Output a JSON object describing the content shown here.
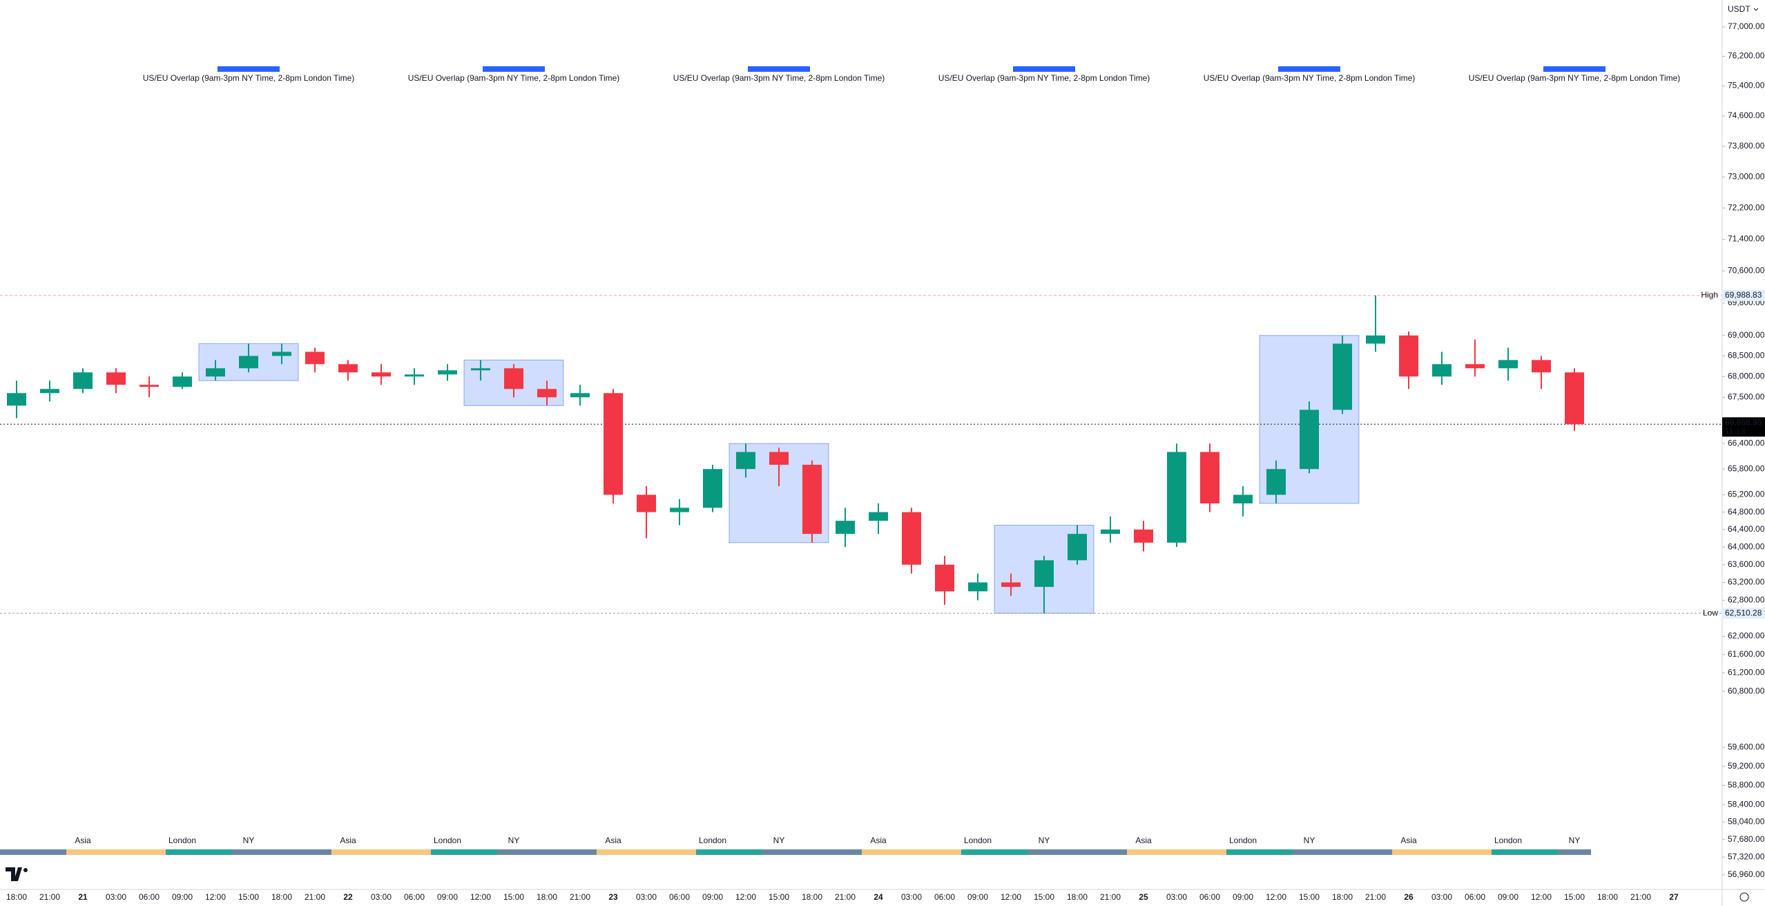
{
  "chart_data": {
    "type": "candlestick",
    "currency": "USDT",
    "log_scale": true,
    "up_color": "#089981",
    "down_color": "#f23645",
    "box_color": "#2962ff",
    "categories": [
      "18:00",
      "21:00",
      "21",
      "03:00",
      "06:00",
      "09:00",
      "12:00",
      "15:00",
      "18:00",
      "21:00",
      "22",
      "03:00",
      "06:00",
      "09:00",
      "12:00",
      "15:00",
      "18:00",
      "21:00",
      "23",
      "03:00",
      "06:00",
      "09:00",
      "12:00",
      "15:00",
      "18:00",
      "21:00",
      "24",
      "03:00",
      "06:00",
      "09:00",
      "12:00",
      "15:00",
      "18:00",
      "21:00",
      "25",
      "03:00",
      "06:00",
      "09:00",
      "12:00",
      "15:00",
      "18:00",
      "21:00",
      "26",
      "03:00",
      "06:00",
      "09:00",
      "12:00",
      "15:00",
      "18:00",
      "21:00",
      "27"
    ],
    "open": [
      67300,
      67600,
      67700,
      68100,
      67800,
      67750,
      68000,
      68200,
      68500,
      68600,
      68300,
      68100,
      68000,
      68050,
      68150,
      68200,
      67700,
      67500,
      67600,
      65200,
      64800,
      64900,
      65800,
      66200,
      65900,
      64300,
      64600,
      64800,
      63600,
      63000,
      63200,
      63100,
      63700,
      64300,
      64400,
      64100,
      66200,
      65000,
      65200,
      65800,
      67200,
      68800,
      69000,
      68000,
      68300,
      68200,
      68400,
      68100,
      null,
      null,
      null
    ],
    "high": [
      67900,
      67900,
      68200,
      68200,
      68000,
      68100,
      68400,
      68800,
      68800,
      68700,
      68400,
      68300,
      68200,
      68300,
      68400,
      68300,
      67900,
      67800,
      67700,
      65400,
      65100,
      65900,
      66400,
      66300,
      66000,
      64900,
      65000,
      64900,
      63800,
      63400,
      63400,
      63800,
      64500,
      64700,
      64600,
      66400,
      66400,
      65400,
      66000,
      67400,
      69000,
      69988.83,
      69100,
      68600,
      68900,
      68700,
      68500,
      68200,
      null,
      null,
      null
    ],
    "low": [
      67000,
      67400,
      67600,
      67600,
      67500,
      67700,
      67900,
      68100,
      68300,
      68100,
      67900,
      67800,
      67800,
      67900,
      67900,
      67500,
      67300,
      67300,
      65000,
      64200,
      64500,
      64800,
      65600,
      65400,
      64100,
      64000,
      64300,
      63400,
      62700,
      62800,
      62900,
      62510.28,
      63600,
      64100,
      63900,
      64000,
      64800,
      64700,
      65000,
      65700,
      67100,
      68600,
      67700,
      67800,
      68000,
      67900,
      67700,
      66700,
      null,
      null,
      null
    ],
    "close": [
      67600,
      67700,
      68100,
      67800,
      67750,
      68000,
      68200,
      68500,
      68600,
      68300,
      68100,
      68000,
      68050,
      68150,
      68200,
      67700,
      67500,
      67600,
      65200,
      64800,
      64900,
      65800,
      66200,
      65900,
      64300,
      64600,
      64800,
      63600,
      63000,
      63200,
      63100,
      63700,
      64300,
      64400,
      64100,
      66200,
      65000,
      65200,
      65800,
      67200,
      68800,
      69000,
      68000,
      68300,
      68200,
      68400,
      68100,
      66856.95,
      null,
      null,
      null
    ],
    "ylim": [
      56665,
      77740
    ],
    "yticks": [
      {
        "value": 77000,
        "label": "77,000.00"
      },
      {
        "value": 76200,
        "label": "76,200.00"
      },
      {
        "value": 75400,
        "label": "75,400.00"
      },
      {
        "value": 74600,
        "label": "74,600.00"
      },
      {
        "value": 73800,
        "label": "73,800.00"
      },
      {
        "value": 73000,
        "label": "73,000.00"
      },
      {
        "value": 72200,
        "label": "72,200.00"
      },
      {
        "value": 71400,
        "label": "71,400.00"
      },
      {
        "value": 70600,
        "label": "70,600.00"
      },
      {
        "value": 69800,
        "label": "69,800.00"
      },
      {
        "value": 69000,
        "label": "69,000.00"
      },
      {
        "value": 68500,
        "label": "68,500.00"
      },
      {
        "value": 68000,
        "label": "68,000.00"
      },
      {
        "value": 67500,
        "label": "67,500.00"
      },
      {
        "value": 66400,
        "label": "66,400.00"
      },
      {
        "value": 65800,
        "label": "65,800.00"
      },
      {
        "value": 65200,
        "label": "65,200.00"
      },
      {
        "value": 64800,
        "label": "64,800.00"
      },
      {
        "value": 64400,
        "label": "64,400.00"
      },
      {
        "value": 64000,
        "label": "64,000.00"
      },
      {
        "value": 63600,
        "label": "63,600.00"
      },
      {
        "value": 63200,
        "label": "63,200.00"
      },
      {
        "value": 62800,
        "label": "62,800.00"
      },
      {
        "value": 62000,
        "label": "62,000.00"
      },
      {
        "value": 61600,
        "label": "61,600.00"
      },
      {
        "value": 61200,
        "label": "61,200.00"
      },
      {
        "value": 60800,
        "label": "60,800.00"
      },
      {
        "value": 59600,
        "label": "59,600.00"
      },
      {
        "value": 59200,
        "label": "59,200.00"
      },
      {
        "value": 58800,
        "label": "58,800.00"
      },
      {
        "value": 58400,
        "label": "58,400.00"
      },
      {
        "value": 58040,
        "label": "58,040.00"
      },
      {
        "value": 57680,
        "label": "57,680.00"
      },
      {
        "value": 57320,
        "label": "57,320.00"
      },
      {
        "value": 56960,
        "label": "56,960.00"
      }
    ],
    "high_line": {
      "label": "High",
      "value": 69988.83,
      "value_label": "69,988.83"
    },
    "low_line": {
      "label": "Low",
      "value": 62510.28,
      "value_label": "62,510.28"
    },
    "last_price": {
      "value": 66856.95,
      "value_label": "66,856.95",
      "countdown": "11:13"
    },
    "overlap_labels": [
      "US/EU Overlap (9am-3pm NY Time, 2-8pm London Time)",
      "US/EU Overlap (9am-3pm NY Time, 2-8pm London Time)",
      "US/EU Overlap (9am-3pm NY Time, 2-8pm London Time)",
      "US/EU Overlap (9am-3pm NY Time, 2-8pm London Time)",
      "US/EU Overlap (9am-3pm NY Time, 2-8pm London Time)",
      "US/EU Overlap (9am-3pm NY Time, 2-8pm London Time)"
    ],
    "sessions": [
      {
        "name": "Asia",
        "color": "#f7c77e",
        "label_color": "#f9a640"
      },
      {
        "name": "London",
        "color": "#26a69a",
        "label_color": "#22998e"
      },
      {
        "name": "NY",
        "color": "#6a86a3",
        "label_color": "#3f7fb5"
      }
    ]
  }
}
